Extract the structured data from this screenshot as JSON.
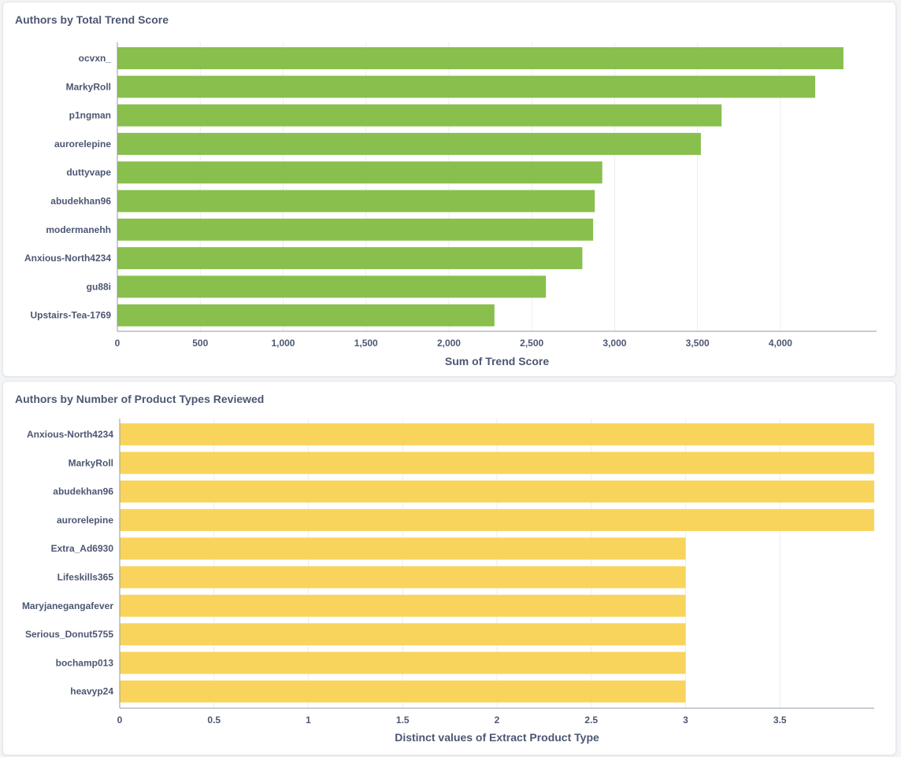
{
  "cards": [
    {
      "title": "Authors by Total Trend Score"
    },
    {
      "title": "Authors by Number of Product Types Reviewed"
    }
  ],
  "chart_data": [
    {
      "type": "bar",
      "orientation": "horizontal",
      "title": "Authors by Total Trend Score",
      "xlabel": "Sum of Trend Score",
      "ylabel": "",
      "color": "#88bf4d",
      "xlim": [
        0,
        4580
      ],
      "ticks": [
        0,
        500,
        1000,
        1500,
        2000,
        2500,
        3000,
        3500,
        4000
      ],
      "tick_labels": [
        "0",
        "500",
        "1,000",
        "1,500",
        "2,000",
        "2,500",
        "3,000",
        "3,500",
        "4,000"
      ],
      "grid": true,
      "categories": [
        "ocvxn_",
        "MarkyRoll",
        "p1ngman",
        "aurorelepine",
        "duttyvape",
        "abudekhan96",
        "modermanehh",
        "Anxious-North4234",
        "gu88i",
        "Upstairs-Tea-1769"
      ],
      "values": [
        4380,
        4210,
        3645,
        3520,
        2925,
        2880,
        2870,
        2805,
        2585,
        2275
      ]
    },
    {
      "type": "bar",
      "orientation": "horizontal",
      "title": "Authors by Number of Product Types Reviewed",
      "xlabel": "Distinct values of Extract Product Type",
      "ylabel": "",
      "color": "#f9d45c",
      "xlim": [
        0,
        4
      ],
      "ticks": [
        0,
        0.5,
        1,
        1.5,
        2,
        2.5,
        3,
        3.5
      ],
      "tick_labels": [
        "0",
        "0.5",
        "1",
        "1.5",
        "2",
        "2.5",
        "3",
        "3.5"
      ],
      "grid": true,
      "categories": [
        "Anxious-North4234",
        "MarkyRoll",
        "abudekhan96",
        "aurorelepine",
        "Extra_Ad6930",
        "Lifeskills365",
        "Maryjanegangafever",
        "Serious_Donut5755",
        "bochamp013",
        "heavyp24"
      ],
      "values": [
        4,
        4,
        4,
        4,
        3,
        3,
        3,
        3,
        3,
        3
      ]
    }
  ]
}
